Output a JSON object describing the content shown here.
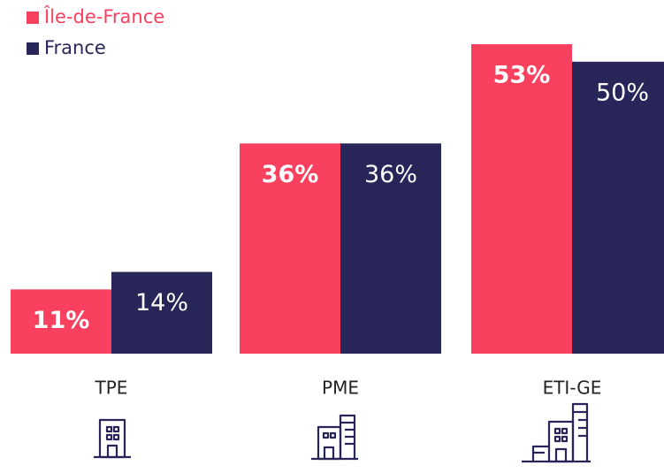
{
  "chart_data": {
    "type": "bar",
    "categories": [
      "TPE",
      "PME",
      "ETI-GE"
    ],
    "series": [
      {
        "name": "Île-de-France",
        "color": "#f9405f",
        "values": [
          11,
          36,
          53
        ],
        "value_labels": [
          "11%",
          "36%",
          "53%"
        ]
      },
      {
        "name": "France",
        "color": "#282658",
        "values": [
          14,
          36,
          50
        ],
        "value_labels": [
          "14%",
          "36%",
          "50%"
        ]
      }
    ]
  }
}
